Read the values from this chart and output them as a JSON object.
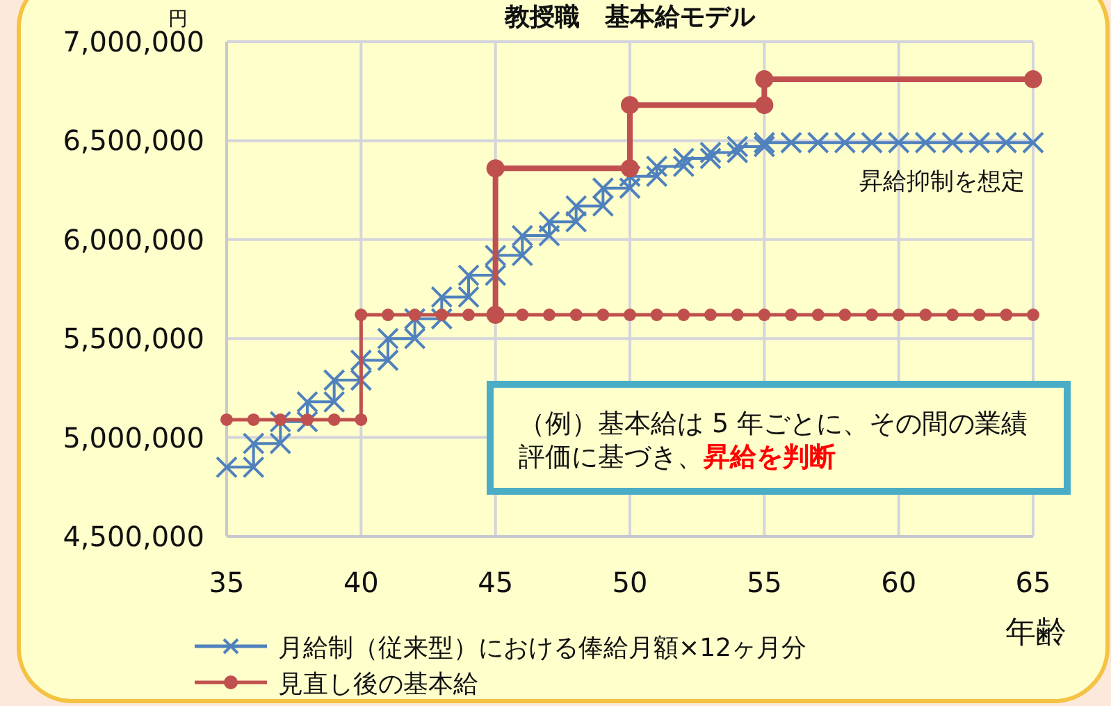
{
  "chart_data": {
    "type": "line",
    "title": "教授職　基本給モデル",
    "ylabel": "円",
    "xlabel": "年齢",
    "xlim": [
      35,
      65
    ],
    "xticks": [
      35,
      40,
      45,
      50,
      55,
      60,
      65
    ],
    "ylim": [
      4500000,
      7000000
    ],
    "yticks": [
      {
        "value": 4500000,
        "label": "4,500,000"
      },
      {
        "value": 5000000,
        "label": "5,000,000"
      },
      {
        "value": 5500000,
        "label": "5,500,000"
      },
      {
        "value": 6000000,
        "label": "6,000,000"
      },
      {
        "value": 6500000,
        "label": "6,500,000"
      },
      {
        "value": 7000000,
        "label": "7,000,000"
      }
    ],
    "grid": true,
    "legend": "bottom left",
    "series": [
      {
        "name": "月給制（従来型）における俸給月額×12ヶ月分",
        "color": "#4f81bd",
        "marker": "cross",
        "x": [
          35,
          36,
          36,
          37,
          37,
          38,
          38,
          39,
          39,
          40,
          40,
          41,
          41,
          42,
          42,
          43,
          43,
          44,
          44,
          45,
          45,
          46,
          46,
          47,
          47,
          48,
          48,
          49,
          49,
          50,
          50,
          51,
          51,
          52,
          52,
          53,
          53,
          54,
          54,
          55,
          55,
          56,
          57,
          58,
          59,
          60,
          61,
          62,
          63,
          64,
          65
        ],
        "values": [
          4850000,
          4850000,
          4970000,
          4970000,
          5080000,
          5080000,
          5180000,
          5180000,
          5290000,
          5290000,
          5390000,
          5390000,
          5500000,
          5500000,
          5600000,
          5600000,
          5710000,
          5710000,
          5820000,
          5820000,
          5920000,
          5920000,
          6020000,
          6020000,
          6090000,
          6090000,
          6170000,
          6170000,
          6260000,
          6260000,
          6320000,
          6320000,
          6370000,
          6370000,
          6410000,
          6410000,
          6440000,
          6440000,
          6470000,
          6470000,
          6490000,
          6490000,
          6490000,
          6490000,
          6490000,
          6490000,
          6490000,
          6490000,
          6490000,
          6490000,
          6490000
        ]
      },
      {
        "name": "見直し後の基本給",
        "color": "#c0504d",
        "marker": "circle",
        "x": [
          35,
          36,
          37,
          38,
          39,
          40,
          40,
          41,
          42,
          43,
          44,
          45,
          46,
          47,
          48,
          49,
          50,
          51,
          52,
          53,
          54,
          55,
          56,
          57,
          58,
          59,
          60,
          61,
          62,
          63,
          64,
          65
        ],
        "values": [
          5090000,
          5090000,
          5090000,
          5090000,
          5090000,
          5090000,
          5620000,
          5620000,
          5620000,
          5620000,
          5620000,
          5620000,
          5620000,
          5620000,
          5620000,
          5620000,
          5620000,
          5620000,
          5620000,
          5620000,
          5620000,
          5620000,
          5620000,
          5620000,
          5620000,
          5620000,
          5620000,
          5620000,
          5620000,
          5620000,
          5620000,
          5620000
        ]
      },
      {
        "color": "#c0504d",
        "marker": "circle",
        "x": [
          45,
          45,
          50,
          50,
          55,
          55,
          65
        ],
        "values": [
          5620000,
          6360000,
          6360000,
          6680000,
          6680000,
          6810000,
          6810000
        ]
      }
    ],
    "annotations": [
      "昇給抑制を想定",
      "（例）基本給は 5 年ごとに、その間の業績評価に基づき、",
      "昇給を判断"
    ]
  }
}
